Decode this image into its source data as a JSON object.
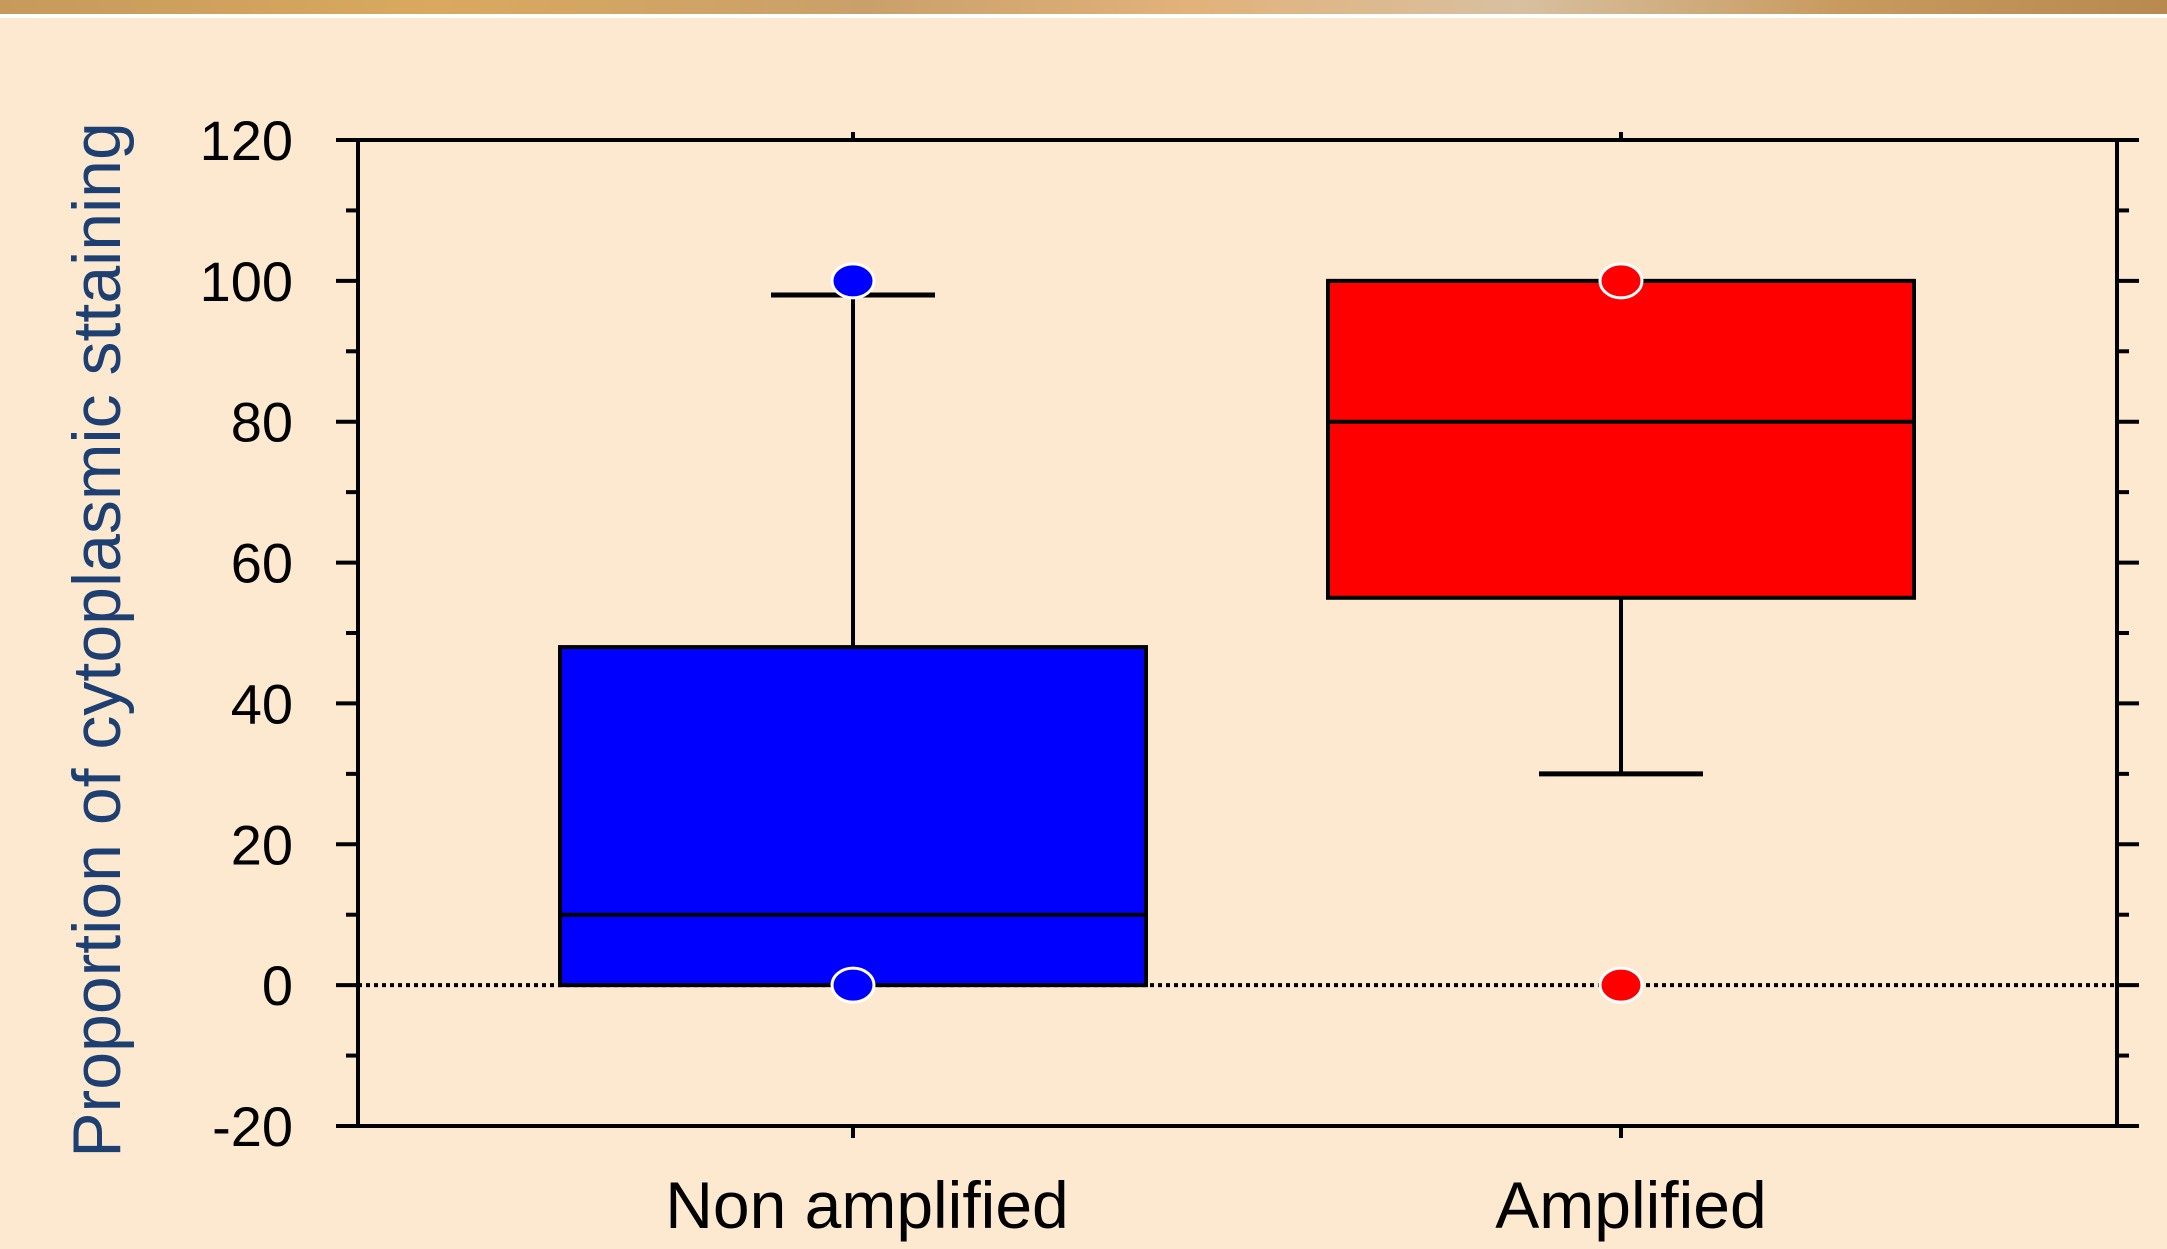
{
  "chart_data": {
    "type": "box",
    "ylabel": "Proportion of cytoplasmic sttaining",
    "xlabel": "",
    "ylim": [
      -20,
      120
    ],
    "yticks": [
      -20,
      0,
      20,
      40,
      60,
      80,
      100,
      120
    ],
    "reference_line": 0,
    "categories": [
      "Non amplified",
      "Amplified"
    ],
    "boxes": [
      {
        "category": "Non amplified",
        "color": "#0000ff",
        "whisker_low": 0,
        "q1": 0,
        "median": 10,
        "q3": 48,
        "whisker_high": 98,
        "outliers": [
          100,
          0
        ]
      },
      {
        "category": "Amplified",
        "color": "#ff0000",
        "whisker_low": 30,
        "q1": 55,
        "median": 80,
        "q3": 100,
        "whisker_high": 100,
        "outliers": [
          100,
          0
        ]
      }
    ]
  }
}
